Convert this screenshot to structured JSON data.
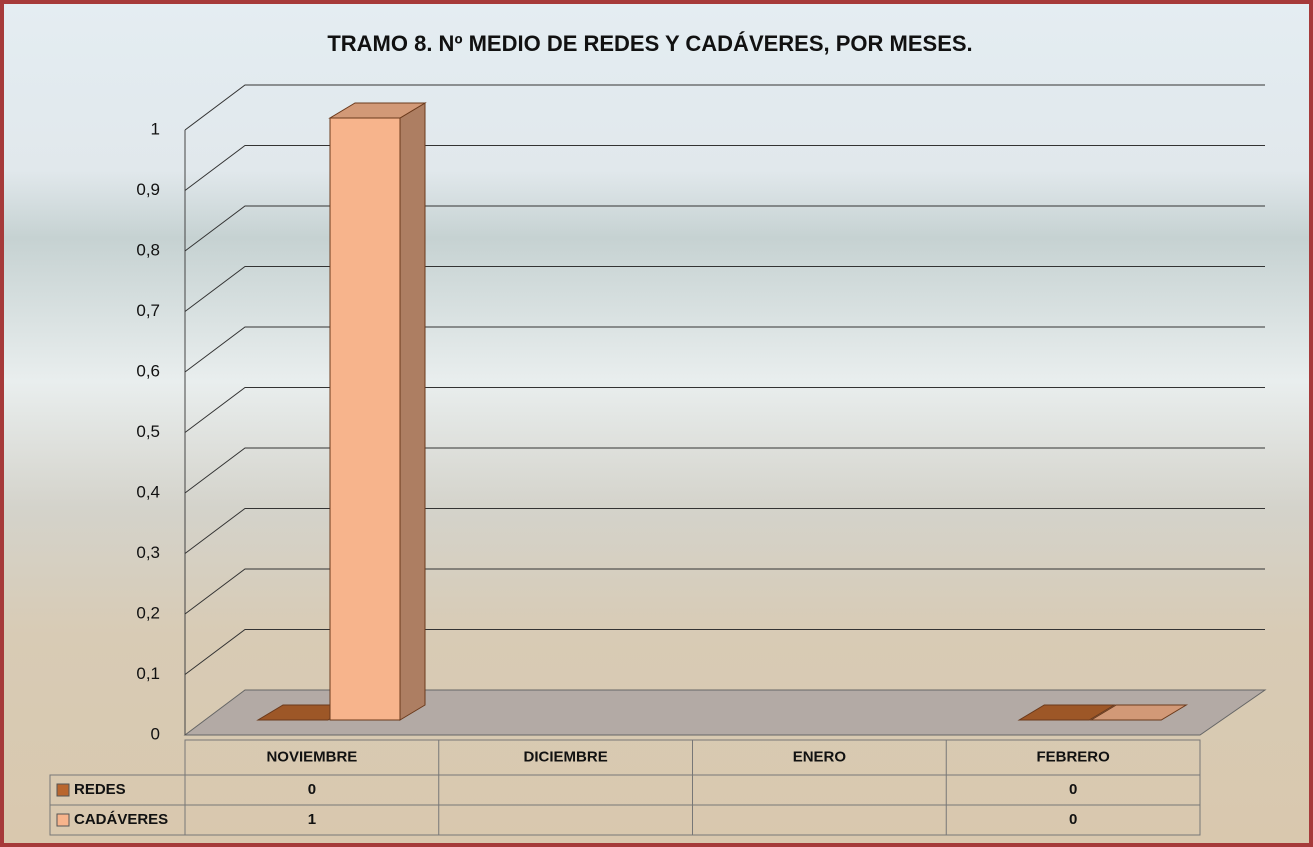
{
  "chart_data": {
    "type": "bar3d",
    "title": "TRAMO 8. Nº MEDIO DE REDES Y CADÁVERES, POR MESES.",
    "categories": [
      "NOVIEMBRE",
      "DICIEMBRE",
      "ENERO",
      "FEBRERO"
    ],
    "series": [
      {
        "name": "REDES",
        "color": "#b9662e",
        "values": [
          0,
          null,
          null,
          0
        ]
      },
      {
        "name": "CADÁVERES",
        "color": "#f7b48c",
        "values": [
          1,
          null,
          null,
          0
        ]
      }
    ],
    "ylim": [
      0,
      1
    ],
    "yticks": [
      0,
      {
        "value": 0.1,
        "label": "0,1"
      },
      {
        "value": 0.2,
        "label": "0,2"
      },
      {
        "value": 0.3,
        "label": "0,3"
      },
      {
        "value": 0.4,
        "label": "0,4"
      },
      {
        "value": 0.5,
        "label": "0,5"
      },
      {
        "value": 0.6,
        "label": "0,6"
      },
      {
        "value": 0.7,
        "label": "0,7"
      },
      {
        "value": 0.8,
        "label": "0,8"
      },
      {
        "value": 0.9,
        "label": "0,9"
      },
      1
    ],
    "grid": true
  }
}
